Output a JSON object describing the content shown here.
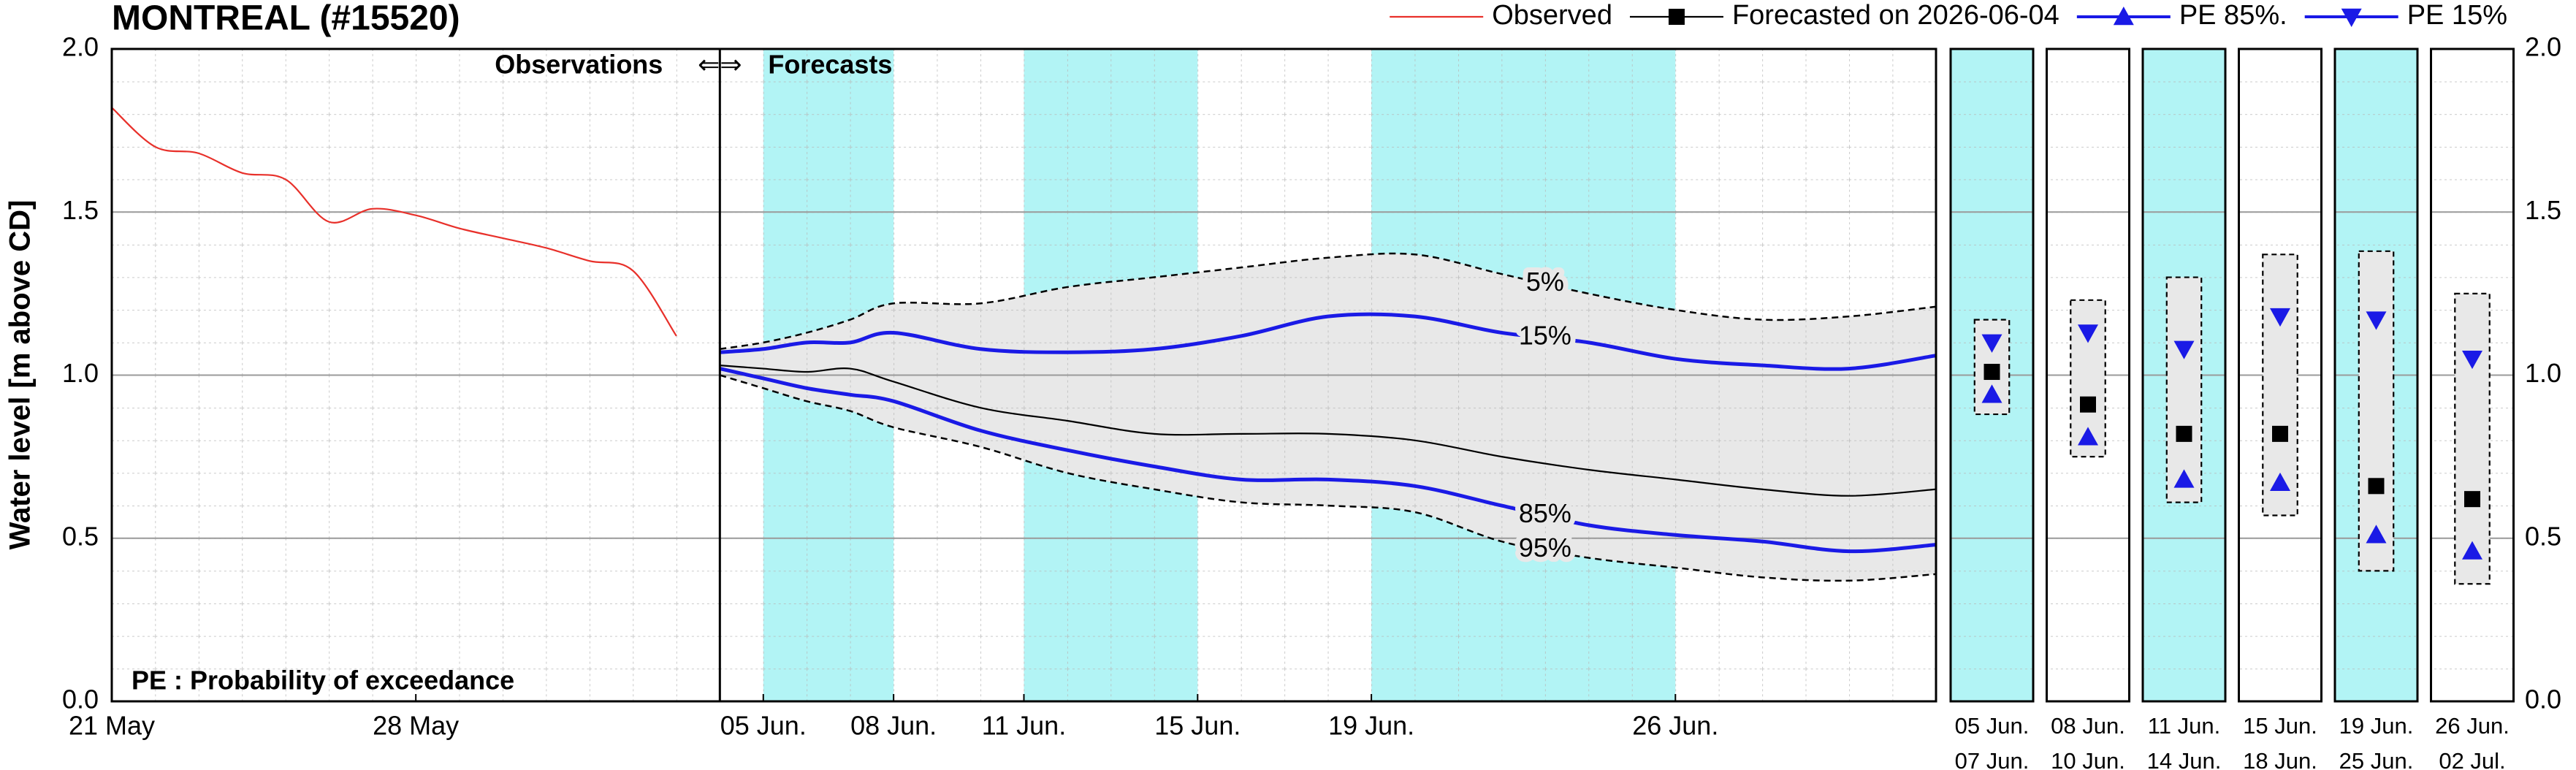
{
  "chart_data": [
    {
      "type": "line",
      "title": "MONTREAL (#15520)",
      "y_label": "Water level [m above CD]",
      "note": "PE : Probability of exceedance",
      "divider": {
        "x": "06-04",
        "left_label": "Observations",
        "arrows": "⇐⇒",
        "right_label": "Forecasts"
      },
      "xlim": [
        "05-21",
        "07-02"
      ],
      "xticks": [
        {
          "value": "05-21",
          "label": "21 May"
        },
        {
          "value": "05-28",
          "label": "28 May"
        },
        {
          "value": "06-05",
          "label": "05 Jun."
        },
        {
          "value": "06-08",
          "label": "08 Jun."
        },
        {
          "value": "06-11",
          "label": "11 Jun."
        },
        {
          "value": "06-15",
          "label": "15 Jun."
        },
        {
          "value": "06-19",
          "label": "19 Jun."
        },
        {
          "value": "06-26",
          "label": "26 Jun."
        }
      ],
      "ylim": [
        0,
        2
      ],
      "yticks": [
        {
          "value": 0,
          "label": "0.0"
        },
        0.5,
        {
          "value": 1,
          "label": "1.0"
        },
        1.5,
        {
          "value": 2,
          "label": "2.0"
        }
      ],
      "grid": true,
      "legend": "top-right",
      "shaded_spans": [
        [
          "06-05",
          "06-08"
        ],
        [
          "06-11",
          "06-15"
        ],
        [
          "06-19",
          "06-26"
        ]
      ],
      "shade_color": "#b2f4f5",
      "band_color": "#e8e8e8",
      "x": [
        "06-04",
        "06-05",
        "06-06",
        "06-07",
        "06-08",
        "06-10",
        "06-12",
        "06-14",
        "06-16",
        "06-18",
        "06-20",
        "06-22",
        "06-24",
        "06-26",
        "06-28",
        "06-30",
        "07-02"
      ],
      "series": [
        {
          "name": "Observed",
          "color": "#e8302a",
          "x": [
            "05-21",
            "05-22",
            "05-23",
            "05-24",
            "05-25",
            "05-26",
            "05-27",
            "05-28",
            "05-29",
            "05-30",
            "05-31",
            "06-01",
            "06-02",
            "06-03"
          ],
          "values": [
            1.82,
            1.7,
            1.68,
            1.62,
            1.6,
            1.47,
            1.51,
            1.49,
            1.45,
            1.42,
            1.39,
            1.35,
            1.32,
            1.12
          ]
        },
        {
          "name": "Forecasted on 2026-06-04",
          "color": "#000000",
          "marker": "square",
          "values": [
            1.03,
            1.02,
            1.01,
            1.02,
            0.98,
            0.9,
            0.86,
            0.82,
            0.82,
            0.82,
            0.8,
            0.75,
            0.71,
            0.68,
            0.65,
            0.63,
            0.65
          ]
        },
        {
          "name": "PE 85%.",
          "color": "#1a1ae6",
          "marker": "triangle-up",
          "label": "85%",
          "values": [
            1.02,
            0.99,
            0.96,
            0.94,
            0.92,
            0.83,
            0.77,
            0.72,
            0.68,
            0.68,
            0.66,
            0.6,
            0.54,
            0.51,
            0.49,
            0.46,
            0.48
          ]
        },
        {
          "name": "PE 15%",
          "color": "#1a1ae6",
          "marker": "triangle-down",
          "label": "15%",
          "values": [
            1.07,
            1.08,
            1.1,
            1.1,
            1.13,
            1.08,
            1.07,
            1.08,
            1.12,
            1.18,
            1.18,
            1.13,
            1.1,
            1.05,
            1.03,
            1.02,
            1.06
          ]
        },
        {
          "label": "5%",
          "color": "#000000",
          "dash": true,
          "values": [
            1.08,
            1.1,
            1.13,
            1.17,
            1.22,
            1.22,
            1.27,
            1.3,
            1.33,
            1.36,
            1.37,
            1.31,
            1.25,
            1.2,
            1.17,
            1.18,
            1.21
          ]
        },
        {
          "label": "95%",
          "color": "#000000",
          "dash": true,
          "values": [
            1.0,
            0.96,
            0.92,
            0.89,
            0.84,
            0.78,
            0.7,
            0.65,
            0.61,
            0.6,
            0.58,
            0.49,
            0.44,
            0.41,
            0.38,
            0.37,
            0.39
          ]
        }
      ]
    },
    {
      "type": "interval",
      "categories": [
        [
          "05 Jun.",
          "07 Jun."
        ],
        [
          "08 Jun.",
          "10 Jun."
        ],
        [
          "11 Jun.",
          "14 Jun."
        ],
        [
          "15 Jun.",
          "18 Jun."
        ],
        [
          "19 Jun.",
          "25 Jun."
        ],
        [
          "26 Jun.",
          "02 Jul."
        ]
      ],
      "shaded": [
        true,
        false,
        true,
        false,
        true,
        false
      ],
      "shade_color": "#b2f4f5",
      "band_color": "#e8e8e8",
      "ylim": [
        0,
        2
      ],
      "yticks": [
        {
          "value": 0,
          "label": "0.0"
        },
        0.5,
        {
          "value": 1,
          "label": "1.0"
        },
        1.5,
        {
          "value": 2,
          "label": "2.0"
        }
      ],
      "low": [
        0.88,
        0.75,
        0.61,
        0.57,
        0.4,
        0.36
      ],
      "high": [
        1.17,
        1.23,
        1.3,
        1.37,
        1.38,
        1.25
      ],
      "series": [
        {
          "marker": "square",
          "color": "#000000",
          "values": [
            1.01,
            0.91,
            0.82,
            0.82,
            0.66,
            0.62
          ]
        },
        {
          "marker": "triangle-up",
          "color": "#1a1ae6",
          "values": [
            0.94,
            0.81,
            0.68,
            0.67,
            0.51,
            0.46
          ]
        },
        {
          "marker": "triangle-down",
          "color": "#1a1ae6",
          "values": [
            1.1,
            1.13,
            1.08,
            1.18,
            1.17,
            1.05
          ]
        }
      ]
    }
  ]
}
